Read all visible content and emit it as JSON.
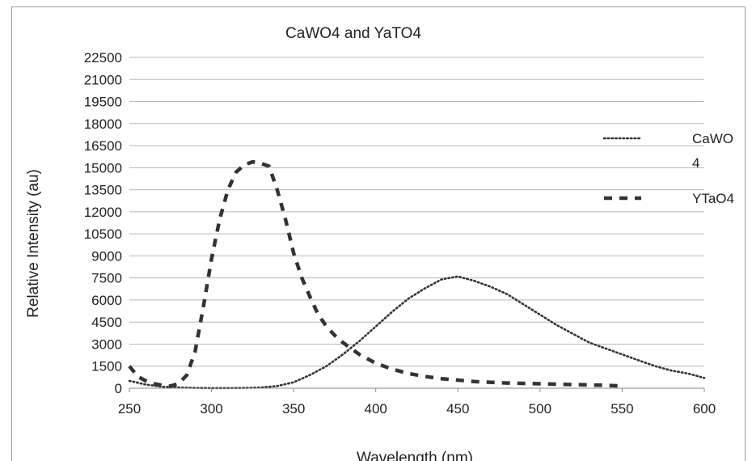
{
  "chart_data": {
    "type": "line",
    "title": "CaWO4 and YaTO4",
    "xlabel": "Wavelength (nm)",
    "ylabel": "Relative Intensity (au)",
    "xlim": [
      250,
      600
    ],
    "ylim": [
      0,
      22500
    ],
    "xticks": [
      250,
      300,
      350,
      400,
      450,
      500,
      550,
      600
    ],
    "yticks": [
      0,
      1500,
      3000,
      4500,
      6000,
      7500,
      9000,
      10500,
      12000,
      13500,
      15000,
      16500,
      18000,
      19500,
      21000,
      22500
    ],
    "grid": true,
    "legend_position": "right",
    "series": [
      {
        "name": "CaWO4",
        "legend_lines": [
          "CaWO",
          "4"
        ],
        "style": "dotted",
        "color": "#333333",
        "x": [
          250,
          260,
          270,
          280,
          290,
          300,
          310,
          320,
          330,
          340,
          350,
          360,
          370,
          380,
          390,
          400,
          410,
          420,
          430,
          440,
          450,
          460,
          470,
          480,
          490,
          500,
          510,
          520,
          530,
          540,
          550,
          560,
          570,
          580,
          590,
          600
        ],
        "y": [
          500,
          250,
          100,
          50,
          20,
          10,
          10,
          20,
          50,
          150,
          400,
          900,
          1500,
          2300,
          3200,
          4200,
          5200,
          6100,
          6800,
          7400,
          7600,
          7300,
          6900,
          6400,
          5700,
          5000,
          4300,
          3700,
          3100,
          2700,
          2300,
          1900,
          1500,
          1200,
          1000,
          700
        ]
      },
      {
        "name": "YTaO4",
        "legend_lines": [
          "YTaO4"
        ],
        "style": "dashed",
        "color": "#333333",
        "x": [
          250,
          255,
          260,
          265,
          270,
          275,
          280,
          285,
          290,
          295,
          300,
          305,
          310,
          315,
          320,
          325,
          330,
          335,
          340,
          345,
          350,
          355,
          360,
          365,
          370,
          375,
          380,
          385,
          390,
          400,
          410,
          420,
          430,
          440,
          450,
          460,
          480,
          500,
          520,
          540,
          550
        ],
        "y": [
          1500,
          800,
          500,
          300,
          200,
          150,
          300,
          900,
          2500,
          5500,
          8800,
          11500,
          13500,
          14700,
          15200,
          15400,
          15300,
          15100,
          13500,
          11500,
          9200,
          7500,
          6200,
          5000,
          4200,
          3600,
          3100,
          2700,
          2300,
          1700,
          1300,
          1000,
          800,
          650,
          550,
          450,
          350,
          300,
          250,
          200,
          150
        ]
      }
    ]
  }
}
